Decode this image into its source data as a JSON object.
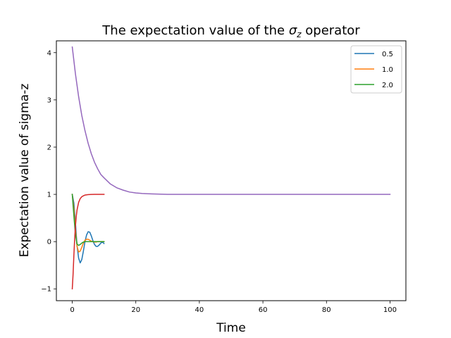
{
  "chart_data": {
    "type": "line",
    "title": {
      "prefix": "The expectation value of the ",
      "symbol": "σ",
      "subscript": "z",
      "suffix": " operator"
    },
    "xlabel": "Time",
    "ylabel": "Expectation value of sigma-z",
    "xlim": [
      -5,
      105
    ],
    "ylim": [
      -1.25,
      4.25
    ],
    "xticks": [
      0,
      20,
      40,
      60,
      80,
      100
    ],
    "xtick_labels": [
      "0",
      "20",
      "40",
      "60",
      "80",
      "100"
    ],
    "yticks": [
      -1,
      0,
      1,
      2,
      3,
      4
    ],
    "ytick_labels": [
      "−1",
      "0",
      "1",
      "2",
      "3",
      "4"
    ],
    "grid": false,
    "legend_position": "top-right",
    "series": [
      {
        "name": "0.5",
        "color": "#1f77b4",
        "x": [
          0,
          0.5,
          1,
          1.5,
          2,
          2.5,
          3,
          3.5,
          4,
          4.5,
          5,
          5.5,
          6,
          6.5,
          7,
          7.5,
          8,
          8.5,
          9,
          9.5,
          10
        ],
        "y": [
          1.0,
          0.82,
          0.4,
          -0.08,
          -0.35,
          -0.45,
          -0.38,
          -0.2,
          0.0,
          0.14,
          0.21,
          0.2,
          0.12,
          0.02,
          -0.06,
          -0.1,
          -0.1,
          -0.07,
          -0.03,
          -0.01,
          -0.04
        ]
      },
      {
        "name": "1.0",
        "color": "#ff7f0e",
        "x": [
          0,
          0.5,
          1,
          1.5,
          2,
          2.5,
          3,
          3.5,
          4,
          4.5,
          5,
          5.5,
          6,
          6.5,
          7,
          7.5,
          8,
          8.5,
          9,
          9.5,
          10
        ],
        "y": [
          1.0,
          0.7,
          0.25,
          -0.1,
          -0.22,
          -0.2,
          -0.12,
          -0.03,
          0.03,
          0.05,
          0.05,
          0.03,
          0.01,
          0.0,
          -0.01,
          -0.01,
          0.0,
          0.0,
          0.0,
          0.0,
          0.0
        ]
      },
      {
        "name": "2.0",
        "color": "#2ca02c",
        "x": [
          0,
          0.5,
          1,
          1.5,
          2,
          2.5,
          3,
          3.5,
          4,
          4.5,
          5,
          6,
          7,
          8,
          9,
          10
        ],
        "y": [
          1.0,
          0.55,
          0.15,
          -0.05,
          -0.08,
          -0.06,
          -0.03,
          -0.01,
          0.0,
          0.0,
          0.0,
          0.0,
          0.0,
          0.0,
          0.0,
          0.0
        ]
      },
      {
        "color": "#d62728",
        "x": [
          0,
          0.25,
          0.5,
          0.75,
          1,
          1.25,
          1.5,
          2,
          2.5,
          3,
          3.5,
          4,
          5,
          6,
          7,
          8,
          9,
          10
        ],
        "y": [
          -1.0,
          -0.7,
          -0.3,
          0.05,
          0.33,
          0.53,
          0.67,
          0.83,
          0.91,
          0.95,
          0.97,
          0.985,
          0.995,
          0.998,
          1.0,
          1.0,
          1.0,
          1.0
        ]
      },
      {
        "color": "#9467bd",
        "x": [
          0,
          1,
          2,
          3,
          4,
          5,
          6,
          7,
          8,
          9,
          10,
          12,
          14,
          16,
          18,
          20,
          22,
          25,
          30,
          35,
          40,
          50,
          60,
          70,
          80,
          90,
          100
        ],
        "y": [
          4.12,
          3.55,
          3.07,
          2.67,
          2.35,
          2.08,
          1.86,
          1.68,
          1.54,
          1.42,
          1.35,
          1.22,
          1.14,
          1.09,
          1.05,
          1.03,
          1.02,
          1.01,
          1.0,
          1.0,
          1.0,
          1.0,
          1.0,
          1.0,
          1.0,
          1.0,
          1.0
        ]
      }
    ]
  }
}
